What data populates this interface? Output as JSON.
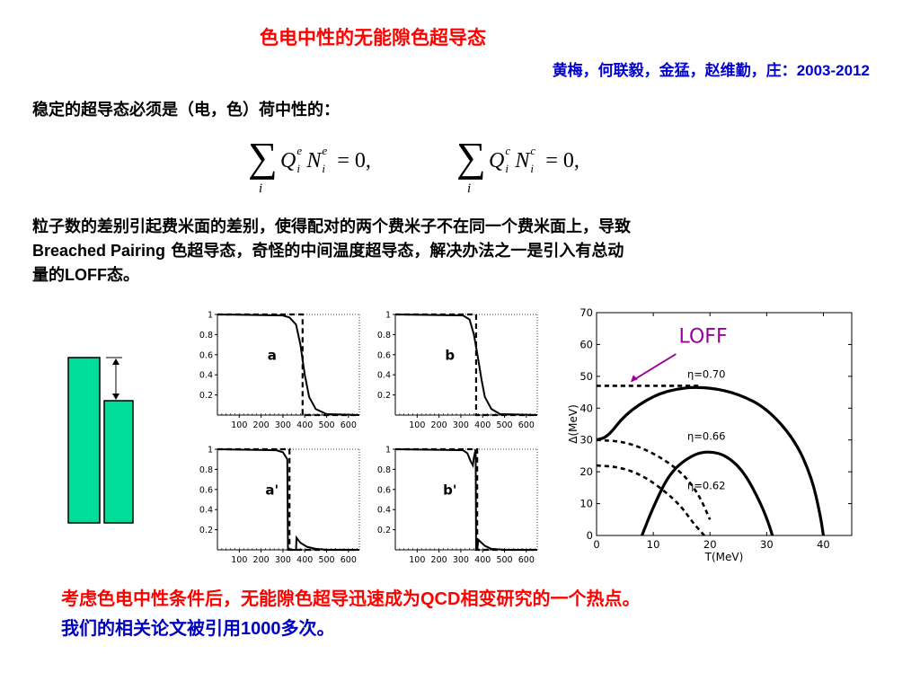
{
  "title": "色电中性的无能隙色超导态",
  "authors": {
    "names": "黄梅，何联毅，金猛，赵维勤，庄：",
    "years": "2003-2012"
  },
  "intro": "稳定的超导态必须是（电，色）荷中性的：",
  "equations": {
    "eq1": {
      "sum_index": "i",
      "q_sup": "e",
      "n_sup": "e",
      "sub": "i",
      "rhs": "= 0,"
    },
    "eq2": {
      "sum_index": "i",
      "q_sup": "c",
      "n_sup": "c",
      "sub": "i",
      "rhs": "= 0,"
    }
  },
  "paragraph": {
    "line1": "粒子数的差别引起费米面的差别，使得配对的两个费米子不在同一个费米面上，导致",
    "line2_lat": "Breached Pairing",
    "line2_rest": " 色超导态，奇怪的中间温度超导态，解决办法之一是引入有总动",
    "line3_pre": "量的",
    "line3_lat": "LOFF",
    "line3_post": "态。"
  },
  "colors": {
    "title": "#ff0000",
    "authors": "#0000d0",
    "bars": "#00dd99",
    "loff_arrow": "#990099",
    "bottom_red": "#ff0000",
    "bottom_blue": "#0000c0"
  },
  "bar_diagram": {
    "left_bar": "tall",
    "right_bar": "short",
    "arrow": "double-headed vertical arrow showing height difference"
  },
  "chart_data": [
    {
      "type": "line",
      "panel_label": "a",
      "x_ticks": [
        100,
        200,
        300,
        400,
        500,
        600
      ],
      "y_ticks": [
        0.2,
        0.4,
        0.6,
        0.8,
        1
      ],
      "xlim": [
        0,
        650
      ],
      "ylim": [
        0,
        1
      ],
      "series": [
        {
          "style": "dashed",
          "x": [
            0,
            390,
            390,
            650
          ],
          "y": [
            1,
            1,
            0,
            0
          ]
        },
        {
          "style": "solid",
          "x": [
            0,
            300,
            330,
            360,
            380,
            400,
            420,
            450,
            500,
            650
          ],
          "y": [
            1,
            0.99,
            0.97,
            0.9,
            0.7,
            0.4,
            0.18,
            0.06,
            0.01,
            0
          ]
        }
      ]
    },
    {
      "type": "line",
      "panel_label": "b",
      "x_ticks": [
        100,
        200,
        300,
        400,
        500,
        600
      ],
      "y_ticks": [
        0.2,
        0.4,
        0.6,
        0.8,
        1
      ],
      "xlim": [
        0,
        650
      ],
      "ylim": [
        0,
        1
      ],
      "series": [
        {
          "style": "dashed",
          "x": [
            0,
            370,
            370,
            650
          ],
          "y": [
            1,
            1,
            0,
            0
          ]
        },
        {
          "style": "solid",
          "x": [
            0,
            310,
            340,
            360,
            380,
            395,
            410,
            440,
            480,
            650
          ],
          "y": [
            1,
            0.99,
            0.95,
            0.8,
            0.55,
            0.35,
            0.18,
            0.06,
            0.01,
            0
          ]
        }
      ]
    },
    {
      "type": "line",
      "panel_label": "a'",
      "x_ticks": [
        100,
        200,
        300,
        400,
        500,
        600
      ],
      "y_ticks": [
        0.2,
        0.4,
        0.6,
        0.8,
        1
      ],
      "xlim": [
        0,
        650
      ],
      "ylim": [
        0,
        1
      ],
      "series": [
        {
          "style": "dashed",
          "x": [
            0,
            330,
            330,
            650
          ],
          "y": [
            1,
            1,
            0,
            0
          ]
        },
        {
          "style": "solid",
          "x": [
            0,
            270,
            300,
            320,
            323,
            360,
            362,
            380,
            410,
            450,
            500,
            650
          ],
          "y": [
            1,
            0.99,
            0.97,
            0.9,
            0,
            0,
            0.12,
            0.07,
            0.03,
            0.01,
            0,
            0
          ]
        }
      ]
    },
    {
      "type": "line",
      "panel_label": "b'",
      "x_ticks": [
        100,
        200,
        300,
        400,
        500,
        600
      ],
      "y_ticks": [
        0.2,
        0.4,
        0.6,
        0.8,
        1
      ],
      "xlim": [
        0,
        650
      ],
      "ylim": [
        0,
        1
      ],
      "series": [
        {
          "style": "dashed",
          "x": [
            0,
            375,
            375,
            650
          ],
          "y": [
            1,
            1,
            0,
            0
          ]
        },
        {
          "style": "solid",
          "x": [
            0,
            310,
            330,
            345,
            355,
            360,
            368,
            370,
            372,
            375,
            380,
            390,
            410,
            440,
            500,
            650
          ],
          "y": [
            1,
            0.99,
            0.96,
            0.88,
            0.84,
            0.92,
            1,
            0,
            0,
            0,
            0.1,
            0.08,
            0.04,
            0.01,
            0,
            0
          ]
        }
      ]
    },
    {
      "type": "line",
      "xlabel": "T(MeV)",
      "ylabel": "Δ(MeV)",
      "xlim": [
        0,
        45
      ],
      "ylim": [
        0,
        70
      ],
      "x_ticks": [
        0,
        10,
        20,
        30,
        40
      ],
      "y_ticks": [
        0,
        10,
        20,
        30,
        40,
        50,
        60,
        70
      ],
      "annotation": "LOFF",
      "series": [
        {
          "name": "η=0.70",
          "style": "solid",
          "x": [
            0,
            2,
            5,
            10,
            15,
            20,
            25,
            30,
            35,
            38,
            39.5,
            40
          ],
          "y": [
            30,
            31,
            38,
            44,
            46.5,
            46.5,
            44.5,
            40,
            30,
            18,
            6,
            0
          ]
        },
        {
          "name": "η=0.70 LOFF",
          "style": "dotted",
          "x": [
            0,
            18
          ],
          "y": [
            47,
            47
          ]
        },
        {
          "name": "η=0.66",
          "style": "solid",
          "x": [
            8,
            10,
            13,
            17,
            20,
            23,
            26,
            29,
            30.5,
            31
          ],
          "y": [
            0,
            9,
            20,
            25.5,
            26.5,
            25,
            20,
            10,
            3,
            0
          ]
        },
        {
          "name": "η=0.66 dashed",
          "style": "dotted",
          "x": [
            0,
            5,
            10,
            15,
            18,
            20
          ],
          "y": [
            30,
            29.5,
            26,
            20,
            13,
            5
          ]
        },
        {
          "name": "η=0.62",
          "style": "dotted",
          "x": [
            0,
            4,
            8,
            12,
            15,
            17,
            18.5,
            19
          ],
          "y": [
            22,
            21.5,
            19,
            14,
            9,
            4,
            1,
            0
          ]
        }
      ],
      "labels": [
        "η=0.70",
        "η=0.66",
        "η=0.62"
      ]
    }
  ],
  "bottom": {
    "line1_pre": "考虑色电中性条件后，无能隙色超导迅速成为",
    "line1_lat": "QCD",
    "line1_post": "相变研究的一个热点。",
    "line2_pre": "我们的相关论文被引用",
    "line2_num": "1000",
    "line2_post": "多次。"
  }
}
